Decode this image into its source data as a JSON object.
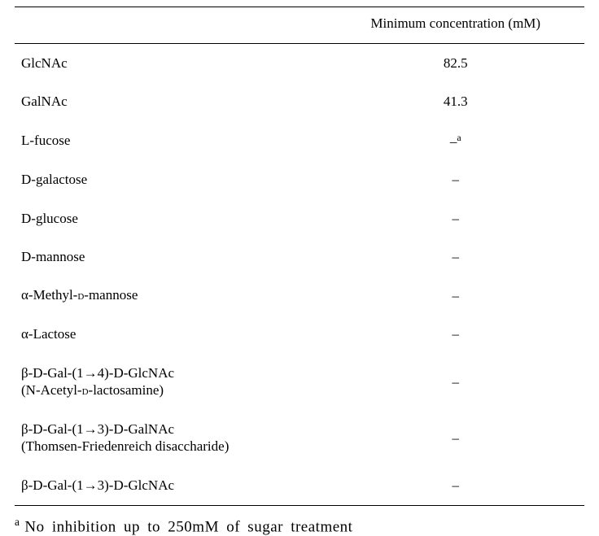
{
  "table": {
    "columns": {
      "sugar": "",
      "conc": "Minimum concentration (mM)"
    },
    "rows": [
      {
        "sugar_html": "GlcNAc",
        "conc_html": "82.5"
      },
      {
        "sugar_html": "GalNAc",
        "conc_html": "41.3"
      },
      {
        "sugar_html": "L-fucose",
        "conc_html": "–<sup class=\"note\">a</sup>"
      },
      {
        "sugar_html": "D-galactose",
        "conc_html": "–"
      },
      {
        "sugar_html": "D-glucose",
        "conc_html": "–"
      },
      {
        "sugar_html": "D-mannose",
        "conc_html": "–"
      },
      {
        "sugar_html": "α-Methyl-<span class=\"smallcap\">d</span>-mannose",
        "conc_html": "–"
      },
      {
        "sugar_html": "α-Lactose",
        "conc_html": "–"
      },
      {
        "sugar_html": "β-D-Gal-(1→4)-D-GlcNAc<span class=\"subline\">(N-Acetyl-<span class=\"smallcap\">d</span>-lactosamine)</span>",
        "conc_html": "–"
      },
      {
        "sugar_html": "β-D-Gal-(1→3)-D-GalNAc<span class=\"subline\">(Thomsen-Friedenreich disaccharide)</span>",
        "conc_html": "–"
      },
      {
        "sugar_html": "β-D-Gal-(1→3)-D-GlcNAc",
        "conc_html": "–"
      }
    ],
    "border_color": "#000000",
    "background_color": "#ffffff",
    "font_family": "Times New Roman",
    "body_fontsize_pt": 13,
    "footnote_fontsize_pt": 14
  },
  "footnote": {
    "marker": "a",
    "text": "No inhibition up to 250mM of sugar treatment"
  }
}
